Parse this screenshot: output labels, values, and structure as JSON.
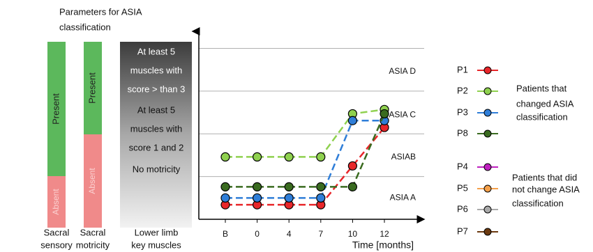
{
  "title_lines": [
    "Parameters for ASIA",
    "classification"
  ],
  "columns": [
    {
      "label_lines": [
        "Sacral",
        "sensory"
      ],
      "segments": [
        "Present",
        "Absent"
      ]
    },
    {
      "label_lines": [
        "Sacral",
        "motricity"
      ],
      "segments": [
        "Present",
        "Absent"
      ]
    }
  ],
  "muscles": {
    "label_lines": [
      "Lower limb",
      "key muscles"
    ],
    "levels": [
      [
        "At least 5",
        "muscles with",
        "score > than 3"
      ],
      [
        "At least 5",
        "muscles with",
        "score 1 and 2"
      ],
      [
        "No motricity"
      ]
    ]
  },
  "chart_data": {
    "type": "line",
    "x_label": "Time [months]",
    "categories": [
      "B",
      "0",
      "4",
      "7",
      "10",
      "12"
    ],
    "ylim": [
      0,
      4.4
    ],
    "yticks": [
      1,
      2,
      3,
      4
    ],
    "grid": true,
    "bands": [
      {
        "label": "ASIA A",
        "value": 0.5
      },
      {
        "label": "ASIAB",
        "value": 1.45
      },
      {
        "label": "ASIA C",
        "value": 2.44
      },
      {
        "label": "ASIA D",
        "value": 3.46
      }
    ],
    "series": [
      {
        "name": "P1",
        "color": "#e8262a",
        "values": [
          0.34,
          0.34,
          0.34,
          0.34,
          1.25,
          2.15
        ]
      },
      {
        "name": "P2",
        "color": "#8fd14f",
        "values": [
          1.46,
          1.46,
          1.46,
          1.46,
          2.47,
          2.57
        ]
      },
      {
        "name": "P3",
        "color": "#2f7ed8",
        "values": [
          0.5,
          0.5,
          0.5,
          0.5,
          2.31,
          2.31
        ]
      },
      {
        "name": "P8",
        "color": "#3a6b20",
        "values": [
          0.76,
          0.76,
          0.76,
          0.76,
          0.76,
          2.47
        ]
      },
      {
        "name": "P4",
        "color": "#c020c0"
      },
      {
        "name": "P5",
        "color": "#f5a04a"
      },
      {
        "name": "P6",
        "color": "#aaaaaa"
      },
      {
        "name": "P7",
        "color": "#6b3a10"
      }
    ],
    "legend_groups": [
      {
        "lines": [
          "Patients that",
          "changed ASIA",
          "classification"
        ]
      },
      {
        "lines": [
          "Patients that did",
          "not change ASIA",
          "classification"
        ]
      }
    ]
  }
}
